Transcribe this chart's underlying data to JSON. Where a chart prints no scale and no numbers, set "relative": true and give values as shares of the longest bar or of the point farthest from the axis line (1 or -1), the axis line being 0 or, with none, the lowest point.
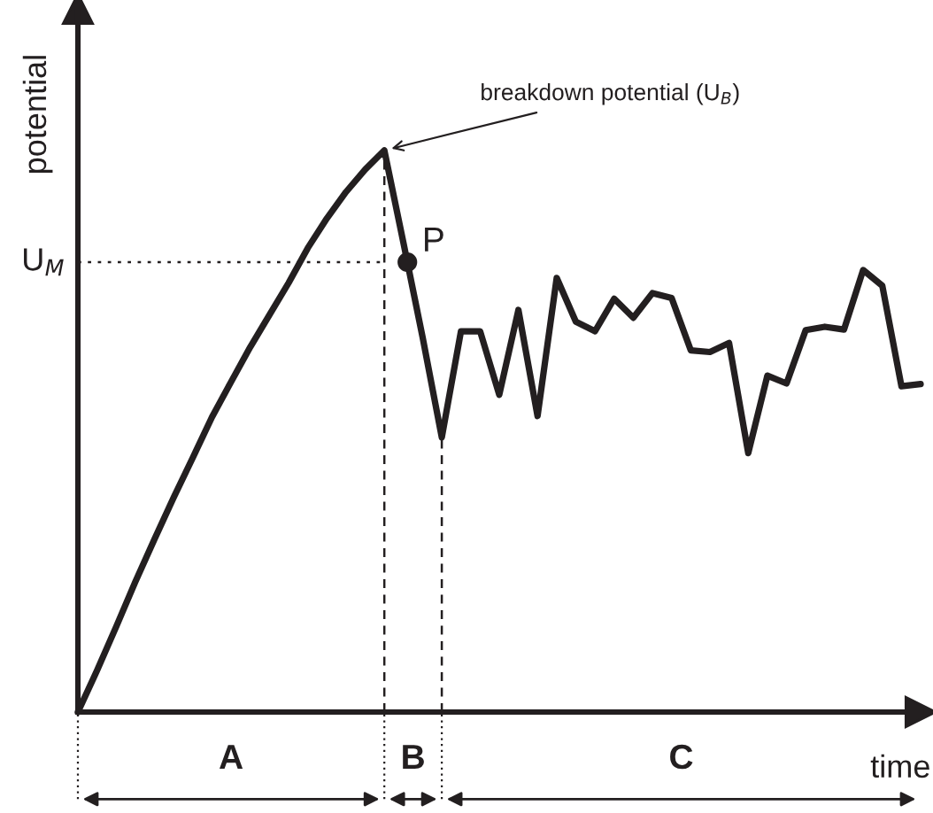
{
  "chart_data": {
    "type": "line",
    "relative": true,
    "xlabel": "time",
    "ylabel": "potential",
    "categories": [
      null,
      null,
      null,
      null,
      null,
      null,
      null,
      null,
      null,
      null,
      null,
      null,
      null,
      null,
      null,
      null,
      null,
      null,
      null,
      null,
      null,
      null,
      null,
      null,
      null,
      null,
      null,
      null,
      null,
      null,
      null,
      null,
      null,
      null,
      null,
      null,
      null,
      null,
      null,
      null,
      null,
      null,
      null,
      null,
      null
    ],
    "series": [
      {
        "color": "#231f20",
        "values": [
          0,
          0.074,
          0.152,
          0.232,
          0.308,
          0.382,
          0.453,
          0.525,
          0.588,
          0.65,
          0.707,
          0.764,
          0.826,
          0.879,
          0.926,
          0.966,
          1.0,
          0.835,
          0.667,
          0.489,
          0.678,
          0.678,
          0.565,
          0.716,
          0.527,
          0.773,
          0.695,
          0.678,
          0.736,
          0.702,
          0.746,
          0.737,
          0.644,
          0.641,
          0.657,
          0.461,
          0.599,
          0.585,
          0.68,
          0.686,
          0.681,
          0.787,
          0.759,
          0.58,
          0.584
        ]
      }
    ],
    "ref_lines": [
      {
        "axis": "y",
        "value": 0.801,
        "label": "U$_{M}$",
        "line_style": "dotted"
      }
    ],
    "annotations": [
      "breakdown potential (U$_{B}$)",
      "P",
      "A",
      "B",
      "C"
    ],
    "grid": false,
    "legend": false
  }
}
